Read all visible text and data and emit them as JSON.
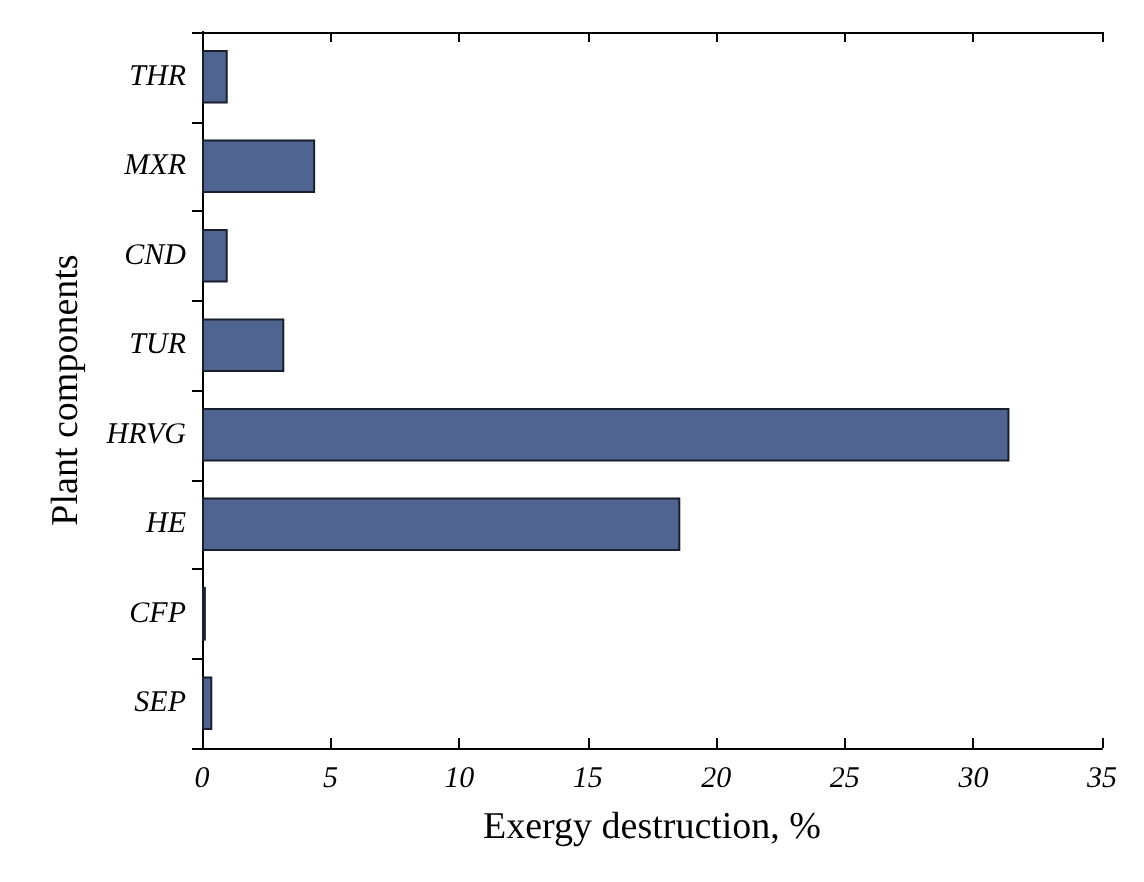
{
  "chart_data": {
    "type": "bar",
    "orientation": "horizontal",
    "xlabel": "Exergy destruction, %",
    "ylabel": "Plant components",
    "categories": [
      "THR",
      "MXR",
      "CND",
      "TUR",
      "HRVG",
      "HE",
      "CFP",
      "SEP"
    ],
    "values": [
      1.0,
      4.4,
      1.0,
      3.2,
      31.4,
      18.6,
      0.15,
      0.4
    ],
    "color": "#4f6491",
    "xlim": [
      0,
      35
    ],
    "xticks": [
      0,
      5,
      10,
      15,
      20,
      25,
      30,
      35
    ],
    "grid": false
  }
}
